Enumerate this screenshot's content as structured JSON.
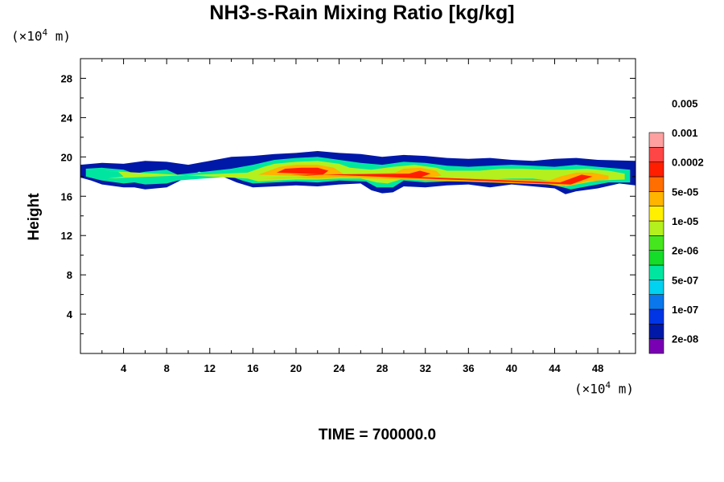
{
  "chart_data": {
    "type": "heatmap",
    "title": "NH3-s-Rain Mixing Ratio [kg/kg]",
    "ylabel": "Height",
    "xlabel": "",
    "x_unit": {
      "prefix": "(×10",
      "exp": "4",
      "suffix": " m)"
    },
    "y_unit": {
      "prefix": "(×10",
      "exp": "4",
      "suffix": " m)"
    },
    "xlim": [
      0,
      51.5
    ],
    "ylim": [
      0,
      30
    ],
    "x_ticks": [
      4,
      8,
      12,
      16,
      20,
      24,
      28,
      32,
      36,
      40,
      44,
      48
    ],
    "y_ticks": [
      4,
      8,
      12,
      16,
      20,
      24,
      28
    ],
    "time_label": "TIME = 700000.0",
    "colorbar": {
      "levels": [
        "2e-08",
        "1e-07",
        "5e-07",
        "2e-06",
        "1e-05",
        "5e-05",
        "0.0002",
        "0.001",
        "0.005"
      ],
      "colors": [
        "#7a00b4",
        "#0018a8",
        "#0035e6",
        "#0a78ec",
        "#00d2f0",
        "#00e6a0",
        "#14dc28",
        "#46e61e",
        "#b4f01e",
        "#fff000",
        "#ffb400",
        "#ff6e00",
        "#ff1e00",
        "#ff4646",
        "#ffa0a0"
      ]
    },
    "cloud_layers": [
      {
        "name": "outer",
        "color": "#0018a8",
        "points": [
          [
            0,
            19.2
          ],
          [
            2,
            19.4
          ],
          [
            4,
            19.3
          ],
          [
            6,
            19.6
          ],
          [
            8,
            19.5
          ],
          [
            10,
            19.2
          ],
          [
            12,
            19.6
          ],
          [
            14,
            20.0
          ],
          [
            16,
            20.1
          ],
          [
            18,
            20.3
          ],
          [
            20,
            20.4
          ],
          [
            22,
            20.6
          ],
          [
            24,
            20.4
          ],
          [
            26,
            20.3
          ],
          [
            28,
            20.0
          ],
          [
            30,
            20.2
          ],
          [
            32,
            20.1
          ],
          [
            34,
            19.9
          ],
          [
            36,
            19.8
          ],
          [
            38,
            19.9
          ],
          [
            40,
            19.7
          ],
          [
            42,
            19.6
          ],
          [
            44,
            19.8
          ],
          [
            46,
            19.9
          ],
          [
            48,
            19.7
          ],
          [
            51.5,
            19.6
          ],
          [
            51.5,
            17.1
          ],
          [
            50,
            17.3
          ],
          [
            48,
            16.8
          ],
          [
            46,
            16.5
          ],
          [
            45,
            16.2
          ],
          [
            44,
            16.8
          ],
          [
            42,
            17.0
          ],
          [
            40,
            17.2
          ],
          [
            38,
            16.9
          ],
          [
            36,
            17.2
          ],
          [
            34,
            17.1
          ],
          [
            32,
            16.9
          ],
          [
            30,
            17.0
          ],
          [
            29,
            16.4
          ],
          [
            28,
            16.3
          ],
          [
            27,
            16.6
          ],
          [
            26,
            17.3
          ],
          [
            24,
            17.2
          ],
          [
            22,
            17.0
          ],
          [
            20,
            17.1
          ],
          [
            18,
            17.0
          ],
          [
            16,
            16.9
          ],
          [
            14.5,
            17.4
          ],
          [
            13,
            18.1
          ],
          [
            11,
            18.5
          ],
          [
            10,
            18.0
          ],
          [
            8,
            16.9
          ],
          [
            6,
            16.7
          ],
          [
            5,
            16.9
          ],
          [
            4,
            16.9
          ],
          [
            2,
            17.2
          ],
          [
            1,
            17.6
          ],
          [
            0,
            17.9
          ]
        ]
      },
      {
        "name": "teal",
        "color": "#00e6a0",
        "points": [
          [
            0.5,
            18.8
          ],
          [
            2,
            18.9
          ],
          [
            4,
            18.7
          ],
          [
            5,
            18.3
          ],
          [
            6,
            18.5
          ],
          [
            8,
            18.7
          ],
          [
            9,
            18.2
          ],
          [
            14,
            18.8
          ],
          [
            16,
            19.2
          ],
          [
            18,
            19.7
          ],
          [
            20,
            19.9
          ],
          [
            22,
            20.0
          ],
          [
            24,
            19.7
          ],
          [
            26,
            19.4
          ],
          [
            28,
            19.2
          ],
          [
            30,
            19.5
          ],
          [
            32,
            19.4
          ],
          [
            34,
            19.1
          ],
          [
            36,
            19.0
          ],
          [
            38,
            19.1
          ],
          [
            40,
            19.2
          ],
          [
            42,
            19.1
          ],
          [
            44,
            19.0
          ],
          [
            46,
            19.2
          ],
          [
            48,
            19.0
          ],
          [
            51,
            18.7
          ],
          [
            51,
            17.4
          ],
          [
            49,
            17.4
          ],
          [
            47,
            17.0
          ],
          [
            45.5,
            16.7
          ],
          [
            44,
            17.1
          ],
          [
            42,
            17.4
          ],
          [
            40,
            17.5
          ],
          [
            38,
            17.4
          ],
          [
            36,
            17.5
          ],
          [
            34,
            17.5
          ],
          [
            32,
            17.4
          ],
          [
            30,
            17.6
          ],
          [
            29,
            16.9
          ],
          [
            27.5,
            16.9
          ],
          [
            26.5,
            17.5
          ],
          [
            24,
            17.6
          ],
          [
            22,
            17.4
          ],
          [
            20,
            17.5
          ],
          [
            18,
            17.4
          ],
          [
            16,
            17.3
          ],
          [
            15,
            17.6
          ],
          [
            14,
            18.0
          ],
          [
            9,
            17.6
          ],
          [
            8,
            17.3
          ],
          [
            6,
            17.2
          ],
          [
            5,
            17.4
          ],
          [
            4,
            17.3
          ],
          [
            2,
            17.6
          ],
          [
            0.5,
            18.0
          ]
        ]
      },
      {
        "name": "yellow-green",
        "color": "#b4f01e",
        "points": [
          [
            2,
            18.6
          ],
          [
            3.5,
            18.5
          ],
          [
            4,
            18.0
          ],
          [
            2.5,
            17.8
          ],
          [
            15.5,
            18.4
          ],
          [
            17,
            19.0
          ],
          [
            18,
            19.3
          ],
          [
            20,
            19.5
          ],
          [
            22,
            19.6
          ],
          [
            24,
            19.3
          ],
          [
            25,
            18.9
          ],
          [
            26,
            18.8
          ],
          [
            27,
            18.7
          ],
          [
            29,
            19.0
          ],
          [
            31,
            19.2
          ],
          [
            33,
            18.9
          ],
          [
            34,
            18.6
          ],
          [
            37,
            18.6
          ],
          [
            39,
            18.8
          ],
          [
            41,
            18.8
          ],
          [
            43,
            18.7
          ],
          [
            45,
            18.7
          ],
          [
            47,
            18.8
          ],
          [
            49,
            18.6
          ],
          [
            50.5,
            18.3
          ],
          [
            50.5,
            17.7
          ],
          [
            48,
            17.6
          ],
          [
            46,
            17.2
          ],
          [
            45,
            17.0
          ],
          [
            44,
            17.5
          ],
          [
            42,
            17.8
          ],
          [
            40,
            17.8
          ],
          [
            38,
            17.7
          ],
          [
            36,
            17.8
          ],
          [
            34,
            17.7
          ],
          [
            32,
            17.6
          ],
          [
            30,
            17.8
          ],
          [
            28.5,
            17.3
          ],
          [
            27.5,
            17.4
          ],
          [
            26,
            17.8
          ],
          [
            24,
            17.8
          ],
          [
            22,
            17.7
          ],
          [
            20,
            17.7
          ],
          [
            18,
            17.6
          ],
          [
            16.5,
            17.5
          ],
          [
            15.5,
            17.8
          ]
        ]
      },
      {
        "name": "orange",
        "color": "#ffb400",
        "points": [
          [
            16.5,
            18.2
          ],
          [
            17.5,
            18.6
          ],
          [
            18.5,
            19.0
          ],
          [
            20,
            19.2
          ],
          [
            22,
            19.2
          ],
          [
            23.5,
            18.9
          ],
          [
            24.5,
            18.2
          ],
          [
            24,
            17.9
          ],
          [
            22,
            17.8
          ],
          [
            20,
            17.9
          ],
          [
            18,
            17.8
          ],
          [
            16.8,
            17.8
          ],
          [
            29.2,
            18.4
          ],
          [
            30,
            18.8
          ],
          [
            31.5,
            18.9
          ],
          [
            33,
            18.6
          ],
          [
            33.5,
            18.1
          ],
          [
            32,
            17.7
          ],
          [
            30,
            17.7
          ],
          [
            29.2,
            18.0
          ],
          [
            43.5,
            17.6
          ],
          [
            44.5,
            18.0
          ],
          [
            46,
            18.4
          ],
          [
            47.5,
            18.4
          ],
          [
            49,
            18.1
          ],
          [
            49,
            17.7
          ],
          [
            47,
            17.5
          ],
          [
            45.5,
            17.1
          ],
          [
            44.5,
            17.0
          ],
          [
            43.5,
            17.2
          ]
        ]
      },
      {
        "name": "red",
        "color": "#ff1e00",
        "points": [
          [
            18.2,
            18.4
          ],
          [
            19,
            18.8
          ],
          [
            20.5,
            18.9
          ],
          [
            22,
            18.9
          ],
          [
            23,
            18.6
          ],
          [
            22.5,
            18.2
          ],
          [
            21,
            18.1
          ],
          [
            19.5,
            18.2
          ],
          [
            30.5,
            18.3
          ],
          [
            31.5,
            18.6
          ],
          [
            32.5,
            18.3
          ],
          [
            31.5,
            17.9
          ],
          [
            30.5,
            18.0
          ],
          [
            44.5,
            17.4
          ],
          [
            45.5,
            17.8
          ],
          [
            46.5,
            18.2
          ],
          [
            47.5,
            18.0
          ],
          [
            46.5,
            17.6
          ],
          [
            45.5,
            17.2
          ]
        ]
      }
    ]
  }
}
